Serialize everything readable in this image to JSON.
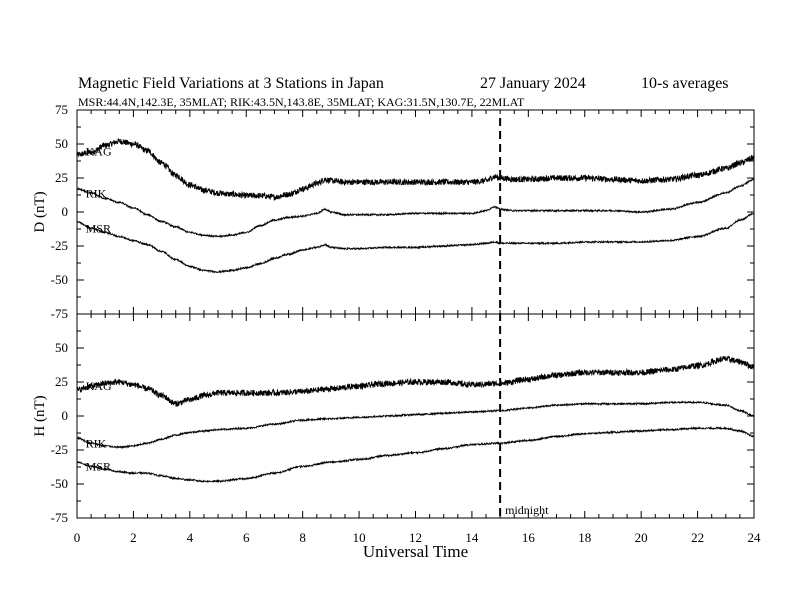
{
  "chart_data": {
    "type": "line",
    "title": "Magnetic Field Variations at 3 Stations in Japan",
    "date": "27 January 2024",
    "averaging": "10-s averages",
    "subtitle": "MSR:44.4N,142.3E, 35MLAT;  RIK:43.5N,143.8E, 35MLAT;  KAG:31.5N,130.7E, 22MLAT",
    "xlabel": "Universal Time",
    "xlim": [
      0,
      24
    ],
    "x_ticks": [
      "0",
      "2",
      "4",
      "6",
      "8",
      "10",
      "12",
      "14",
      "16",
      "18",
      "20",
      "22",
      "24"
    ],
    "marker": {
      "x": 15,
      "label": "midnight"
    },
    "panels": [
      {
        "ylabel": "D (nT)",
        "ylim": [
          -75,
          75
        ],
        "y_ticks": [
          "75",
          "50",
          "25",
          "0",
          "-25",
          "-50",
          "-75"
        ],
        "series": [
          {
            "name": "KAG",
            "noise": 2.2,
            "x": [
              0,
              0.5,
              1,
              1.5,
              2,
              2.5,
              3,
              3.5,
              4,
              4.5,
              5,
              5.5,
              6,
              6.5,
              7,
              7.5,
              8,
              8.5,
              8.8,
              9,
              9.5,
              10,
              11,
              12,
              13,
              14,
              14.5,
              14.8,
              15,
              15.5,
              16,
              17,
              18,
              19,
              20,
              21,
              22,
              23,
              23.5,
              24
            ],
            "values": [
              42,
              44,
              49,
              52,
              50,
              45,
              36,
              27,
              20,
              16,
              14,
              13,
              12,
              12,
              11,
              13,
              17,
              21,
              24,
              23,
              22,
              22,
              22,
              22,
              22,
              22,
              23,
              26,
              25,
              24,
              24,
              25,
              25,
              24,
              23,
              24,
              27,
              32,
              36,
              40
            ]
          },
          {
            "name": "RIK",
            "noise": 0.6,
            "x": [
              0,
              0.5,
              1,
              1.5,
              2,
              2.5,
              3,
              3.5,
              4,
              4.5,
              5,
              5.5,
              6,
              6.5,
              7,
              7.5,
              8,
              8.5,
              8.8,
              9,
              9.5,
              10,
              11,
              12,
              13,
              14,
              14.5,
              14.8,
              15,
              15.5,
              16,
              17,
              18,
              19,
              20,
              21,
              22,
              23,
              23.5,
              24
            ],
            "values": [
              17,
              14,
              10,
              7,
              3,
              -2,
              -7,
              -11,
              -15,
              -17,
              -18,
              -17,
              -15,
              -10,
              -6,
              -4,
              -3,
              -1,
              2,
              0,
              -2,
              -2,
              -2,
              -1,
              -1,
              -1,
              1,
              4,
              2,
              1,
              1,
              1,
              1,
              1,
              0,
              2,
              7,
              14,
              19,
              24
            ]
          },
          {
            "name": "MSR",
            "noise": 0.6,
            "x": [
              0,
              0.5,
              1,
              1.5,
              2,
              2.5,
              3,
              3.5,
              4,
              4.5,
              5,
              5.5,
              6,
              6.5,
              7,
              7.5,
              8,
              8.5,
              8.8,
              9,
              9.5,
              10,
              11,
              12,
              13,
              14,
              14.5,
              14.8,
              15,
              15.5,
              16,
              17,
              18,
              19,
              20,
              21,
              22,
              23,
              23.5,
              24
            ],
            "values": [
              -7,
              -12,
              -15,
              -18,
              -21,
              -24,
              -29,
              -35,
              -40,
              -43,
              -44,
              -43,
              -41,
              -38,
              -34,
              -31,
              -28,
              -26,
              -24,
              -26,
              -27,
              -27,
              -26,
              -26,
              -25,
              -24,
              -23,
              -22,
              -23,
              -23,
              -23,
              -23,
              -22,
              -22,
              -22,
              -21,
              -18,
              -12,
              -6,
              -1
            ]
          }
        ]
      },
      {
        "ylabel": "H (nT)",
        "ylim": [
          -75,
          75
        ],
        "y_ticks": [
          "75",
          "50",
          "25",
          "0",
          "-25",
          "-50",
          "-75"
        ],
        "series": [
          {
            "name": "KAG",
            "noise": 2.2,
            "x": [
              0,
              0.5,
              1,
              1.5,
              2,
              2.5,
              3,
              3.5,
              4,
              4.5,
              5,
              6,
              7,
              8,
              9,
              10,
              11,
              12,
              13,
              14,
              15,
              16,
              17,
              18,
              19,
              20,
              21,
              22,
              23,
              23.5,
              24
            ],
            "values": [
              19,
              22,
              24,
              25,
              23,
              20,
              15,
              9,
              12,
              15,
              17,
              17,
              17,
              18,
              20,
              22,
              24,
              25,
              25,
              23,
              24,
              27,
              30,
              32,
              32,
              32,
              34,
              37,
              42,
              40,
              36
            ]
          },
          {
            "name": "RIK",
            "noise": 0.6,
            "x": [
              0,
              0.5,
              1,
              1.5,
              2,
              2.5,
              3,
              3.5,
              4,
              4.5,
              5,
              6,
              7,
              8,
              9,
              10,
              11,
              12,
              13,
              14,
              15,
              16,
              17,
              18,
              19,
              20,
              21,
              22,
              23,
              23.5,
              24
            ],
            "values": [
              -16,
              -20,
              -22,
              -23,
              -22,
              -20,
              -17,
              -14,
              -12,
              -11,
              -10,
              -9,
              -6,
              -3,
              -2,
              -1,
              0,
              1,
              2,
              3,
              4,
              6,
              8,
              9,
              9,
              9,
              10,
              10,
              8,
              4,
              0
            ]
          },
          {
            "name": "MSR",
            "noise": 0.6,
            "x": [
              0,
              0.5,
              1,
              1.5,
              2,
              2.5,
              3,
              3.5,
              4,
              4.5,
              5,
              6,
              7,
              8,
              9,
              10,
              11,
              12,
              13,
              14,
              15,
              16,
              17,
              18,
              19,
              20,
              21,
              22,
              23,
              23.5,
              24
            ],
            "values": [
              -34,
              -37,
              -39,
              -41,
              -42,
              -42,
              -44,
              -46,
              -47,
              -48,
              -48,
              -46,
              -42,
              -37,
              -34,
              -32,
              -29,
              -27,
              -24,
              -21,
              -20,
              -18,
              -15,
              -13,
              -12,
              -11,
              -10,
              -9,
              -9,
              -11,
              -15
            ]
          }
        ]
      }
    ]
  }
}
